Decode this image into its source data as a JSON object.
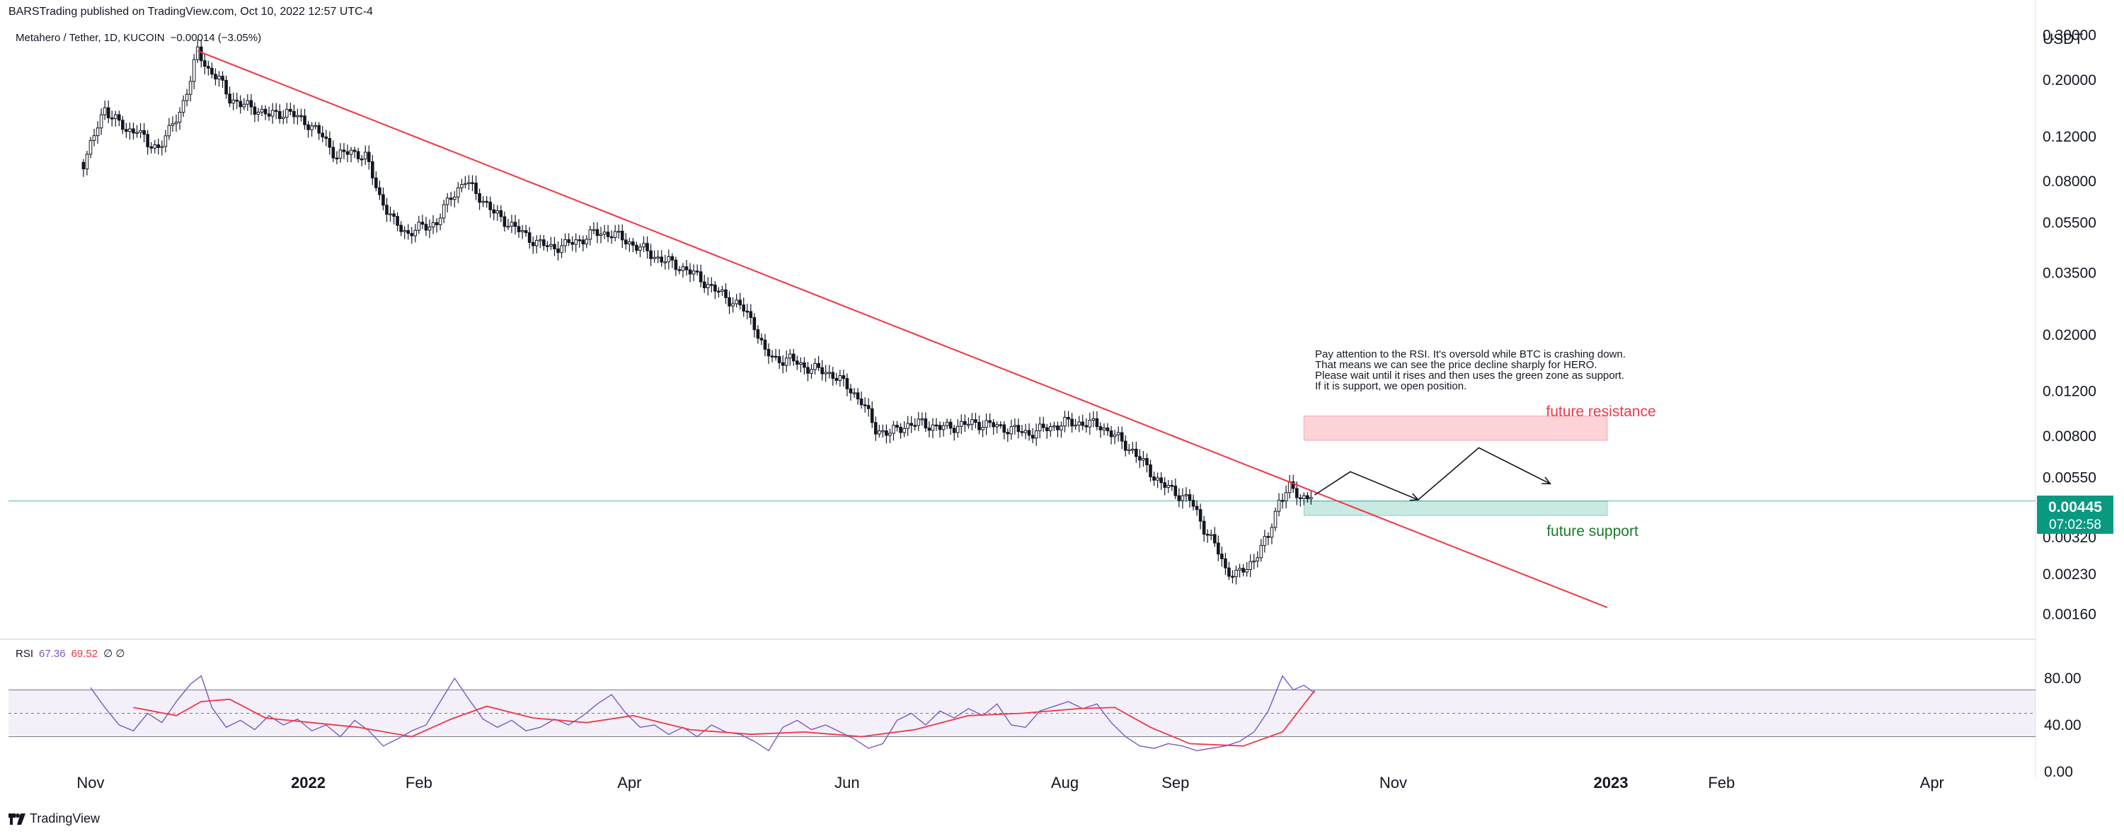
{
  "header": {
    "published": "BARSTrading published on TradingView.com, Oct 10, 2022 12:57 UTC-4",
    "symbol": "Metahero / Tether, 1D, KUCOIN",
    "change": "−0.00014 (−3.05%)"
  },
  "footer": {
    "brand": "TradingView"
  },
  "rsi_legend": {
    "label": "RSI",
    "value1": "67.36",
    "value2": "69.52",
    "extra": "∅ ∅"
  },
  "price_badge": {
    "price": "0.00445",
    "countdown": "07:02:58"
  },
  "colors": {
    "trendline": "#f23645",
    "resistance": "#f23645",
    "support": "#089981",
    "rsi": "#7e57c2",
    "rsi_ma": "#f23645",
    "badge": "#089981"
  },
  "annotations": {
    "note_lines": [
      "Pay attention to the RSI. It's oversold while BTC is crashing down.",
      "That means we can see the price decline sharply for HERO.",
      "Please wait until it rises and then uses the green zone as support.",
      "If it is support, we open position."
    ],
    "resistance_label": "future resistance",
    "support_label": "future support"
  },
  "chart_data": [
    {
      "type": "candlestick",
      "title": "Metahero / Tether, 1D, KUCOIN",
      "yunit": "USDT",
      "yscale": "log",
      "ylim": [
        0.0013,
        0.34
      ],
      "y_ticks": [
        "0.30000",
        "0.20000",
        "0.12000",
        "0.08000",
        "0.05500",
        "0.03500",
        "0.02000",
        "0.01200",
        "0.00800",
        "0.00550",
        "0.00320",
        "0.00230",
        "0.00160"
      ],
      "x_ticks": [
        "Nov",
        "2022",
        "Feb",
        "Apr",
        "Jun",
        "Aug",
        "Sep",
        "Nov",
        "2023",
        "Feb",
        "Apr"
      ],
      "x_range": [
        "2021-10-09",
        "2023-04-30"
      ],
      "close_series": [
        [
          "2021-10-30",
          0.095
        ],
        [
          "2021-11-02",
          0.12
        ],
        [
          "2021-11-05",
          0.155
        ],
        [
          "2021-11-08",
          0.14
        ],
        [
          "2021-11-11",
          0.125
        ],
        [
          "2021-11-14",
          0.13
        ],
        [
          "2021-11-17",
          0.11
        ],
        [
          "2021-11-20",
          0.11
        ],
        [
          "2021-11-23",
          0.125
        ],
        [
          "2021-11-26",
          0.15
        ],
        [
          "2021-11-29",
          0.2
        ],
        [
          "2021-12-01",
          0.26
        ],
        [
          "2021-12-04",
          0.22
        ],
        [
          "2021-12-07",
          0.2
        ],
        [
          "2021-12-10",
          0.17
        ],
        [
          "2021-12-13",
          0.16
        ],
        [
          "2021-12-17",
          0.155
        ],
        [
          "2021-12-21",
          0.145
        ],
        [
          "2021-12-26",
          0.15
        ],
        [
          "2022-01-01",
          0.135
        ],
        [
          "2022-01-05",
          0.12
        ],
        [
          "2022-01-09",
          0.1
        ],
        [
          "2022-01-13",
          0.105
        ],
        [
          "2022-01-17",
          0.1
        ],
        [
          "2022-01-21",
          0.07
        ],
        [
          "2022-01-25",
          0.055
        ],
        [
          "2022-01-29",
          0.05
        ],
        [
          "2022-02-02",
          0.053
        ],
        [
          "2022-02-06",
          0.055
        ],
        [
          "2022-02-10",
          0.07
        ],
        [
          "2022-02-14",
          0.08
        ],
        [
          "2022-02-18",
          0.07
        ],
        [
          "2022-02-22",
          0.06
        ],
        [
          "2022-02-26",
          0.055
        ],
        [
          "2022-03-02",
          0.05
        ],
        [
          "2022-03-06",
          0.046
        ],
        [
          "2022-03-10",
          0.044
        ],
        [
          "2022-03-14",
          0.045
        ],
        [
          "2022-03-18",
          0.047
        ],
        [
          "2022-03-22",
          0.05
        ],
        [
          "2022-03-27",
          0.05
        ],
        [
          "2022-04-01",
          0.046
        ],
        [
          "2022-04-05",
          0.043
        ],
        [
          "2022-04-09",
          0.04
        ],
        [
          "2022-04-13",
          0.038
        ],
        [
          "2022-04-17",
          0.036
        ],
        [
          "2022-04-21",
          0.033
        ],
        [
          "2022-04-25",
          0.03
        ],
        [
          "2022-04-28",
          0.028
        ],
        [
          "2022-05-02",
          0.026
        ],
        [
          "2022-05-06",
          0.022
        ],
        [
          "2022-05-09",
          0.017
        ],
        [
          "2022-05-12",
          0.016
        ],
        [
          "2022-05-16",
          0.016
        ],
        [
          "2022-05-20",
          0.015
        ],
        [
          "2022-05-24",
          0.0145
        ],
        [
          "2022-05-28",
          0.014
        ],
        [
          "2022-06-01",
          0.0125
        ],
        [
          "2022-06-05",
          0.011
        ],
        [
          "2022-06-09",
          0.0085
        ],
        [
          "2022-06-13",
          0.0082
        ],
        [
          "2022-06-17",
          0.0088
        ],
        [
          "2022-06-22",
          0.009
        ],
        [
          "2022-06-27",
          0.0086
        ],
        [
          "2022-07-02",
          0.0088
        ],
        [
          "2022-07-07",
          0.009
        ],
        [
          "2022-07-12",
          0.0088
        ],
        [
          "2022-07-17",
          0.0085
        ],
        [
          "2022-07-22",
          0.0082
        ],
        [
          "2022-07-27",
          0.0086
        ],
        [
          "2022-08-01",
          0.009
        ],
        [
          "2022-08-06",
          0.009
        ],
        [
          "2022-08-11",
          0.0088
        ],
        [
          "2022-08-16",
          0.0078
        ],
        [
          "2022-08-20",
          0.007
        ],
        [
          "2022-08-24",
          0.006
        ],
        [
          "2022-08-28",
          0.0052
        ],
        [
          "2022-09-01",
          0.0048
        ],
        [
          "2022-09-05",
          0.0045
        ],
        [
          "2022-09-09",
          0.0035
        ],
        [
          "2022-09-12",
          0.003
        ],
        [
          "2022-09-15",
          0.0024
        ],
        [
          "2022-09-18",
          0.0023
        ],
        [
          "2022-09-21",
          0.0024
        ],
        [
          "2022-09-24",
          0.0028
        ],
        [
          "2022-09-27",
          0.0032
        ],
        [
          "2022-09-30",
          0.0045
        ],
        [
          "2022-10-03",
          0.005
        ],
        [
          "2022-10-06",
          0.0046
        ],
        [
          "2022-10-09",
          0.0047
        ],
        [
          "2022-10-10",
          0.00445
        ]
      ],
      "trendline": [
        [
          "2021-12-01",
          0.26
        ],
        [
          "2022-12-31",
          0.0017
        ]
      ],
      "resistance_zone": {
        "from": "2022-10-07",
        "to": "2022-12-31",
        "low": 0.0077,
        "high": 0.0096
      },
      "support_zone": {
        "from": "2022-10-07",
        "to": "2022-12-31",
        "low": 0.0039,
        "high": 0.00445
      },
      "projection_path": [
        [
          "2022-10-10",
          0.0047
        ],
        [
          "2022-10-20",
          0.0058
        ],
        [
          "2022-11-08",
          0.0045
        ],
        [
          "2022-11-25",
          0.0072
        ],
        [
          "2022-12-15",
          0.0052
        ]
      ],
      "last_price": 0.00445
    },
    {
      "type": "line",
      "title": "RSI",
      "ylim": [
        0,
        100
      ],
      "y_ticks": [
        "80.00",
        "40.00",
        "0.00"
      ],
      "bands": [
        30,
        50,
        70
      ],
      "series": [
        {
          "name": "RSI",
          "points": [
            [
              "2021-11-01",
              72
            ],
            [
              "2021-11-05",
              55
            ],
            [
              "2021-11-09",
              40
            ],
            [
              "2021-11-13",
              35
            ],
            [
              "2021-11-17",
              50
            ],
            [
              "2021-11-21",
              42
            ],
            [
              "2021-11-25",
              60
            ],
            [
              "2021-11-29",
              75
            ],
            [
              "2021-12-02",
              82
            ],
            [
              "2021-12-05",
              55
            ],
            [
              "2021-12-09",
              38
            ],
            [
              "2021-12-13",
              44
            ],
            [
              "2021-12-17",
              36
            ],
            [
              "2021-12-21",
              48
            ],
            [
              "2021-12-25",
              40
            ],
            [
              "2021-12-29",
              45
            ],
            [
              "2022-01-02",
              35
            ],
            [
              "2022-01-06",
              40
            ],
            [
              "2022-01-10",
              30
            ],
            [
              "2022-01-14",
              44
            ],
            [
              "2022-01-18",
              35
            ],
            [
              "2022-01-22",
              22
            ],
            [
              "2022-01-26",
              28
            ],
            [
              "2022-01-30",
              35
            ],
            [
              "2022-02-03",
              40
            ],
            [
              "2022-02-07",
              60
            ],
            [
              "2022-02-11",
              80
            ],
            [
              "2022-02-15",
              62
            ],
            [
              "2022-02-19",
              45
            ],
            [
              "2022-02-23",
              38
            ],
            [
              "2022-02-27",
              44
            ],
            [
              "2022-03-03",
              35
            ],
            [
              "2022-03-07",
              38
            ],
            [
              "2022-03-11",
              45
            ],
            [
              "2022-03-15",
              40
            ],
            [
              "2022-03-19",
              48
            ],
            [
              "2022-03-23",
              58
            ],
            [
              "2022-03-27",
              66
            ],
            [
              "2022-03-31",
              50
            ],
            [
              "2022-04-04",
              38
            ],
            [
              "2022-04-08",
              40
            ],
            [
              "2022-04-12",
              32
            ],
            [
              "2022-04-16",
              38
            ],
            [
              "2022-04-20",
              30
            ],
            [
              "2022-04-24",
              40
            ],
            [
              "2022-04-28",
              34
            ],
            [
              "2022-05-02",
              32
            ],
            [
              "2022-05-06",
              26
            ],
            [
              "2022-05-10",
              18
            ],
            [
              "2022-05-14",
              38
            ],
            [
              "2022-05-18",
              44
            ],
            [
              "2022-05-22",
              36
            ],
            [
              "2022-05-26",
              40
            ],
            [
              "2022-05-30",
              34
            ],
            [
              "2022-06-03",
              28
            ],
            [
              "2022-06-07",
              20
            ],
            [
              "2022-06-11",
              24
            ],
            [
              "2022-06-15",
              44
            ],
            [
              "2022-06-19",
              50
            ],
            [
              "2022-06-23",
              40
            ],
            [
              "2022-06-27",
              52
            ],
            [
              "2022-07-01",
              46
            ],
            [
              "2022-07-05",
              54
            ],
            [
              "2022-07-09",
              48
            ],
            [
              "2022-07-13",
              58
            ],
            [
              "2022-07-17",
              40
            ],
            [
              "2022-07-21",
              38
            ],
            [
              "2022-07-25",
              52
            ],
            [
              "2022-07-29",
              56
            ],
            [
              "2022-08-02",
              60
            ],
            [
              "2022-08-06",
              54
            ],
            [
              "2022-08-10",
              58
            ],
            [
              "2022-08-14",
              42
            ],
            [
              "2022-08-18",
              30
            ],
            [
              "2022-08-22",
              22
            ],
            [
              "2022-08-26",
              20
            ],
            [
              "2022-08-30",
              24
            ],
            [
              "2022-09-03",
              22
            ],
            [
              "2022-09-07",
              18
            ],
            [
              "2022-09-11",
              20
            ],
            [
              "2022-09-15",
              22
            ],
            [
              "2022-09-19",
              26
            ],
            [
              "2022-09-23",
              34
            ],
            [
              "2022-09-27",
              52
            ],
            [
              "2022-10-01",
              82
            ],
            [
              "2022-10-04",
              70
            ],
            [
              "2022-10-07",
              74
            ],
            [
              "2022-10-10",
              67.36
            ]
          ]
        },
        {
          "name": "RSI MA",
          "points": [
            [
              "2021-11-13",
              55
            ],
            [
              "2021-11-25",
              48
            ],
            [
              "2021-12-02",
              60
            ],
            [
              "2021-12-10",
              62
            ],
            [
              "2021-12-20",
              46
            ],
            [
              "2022-01-02",
              42
            ],
            [
              "2022-01-15",
              38
            ],
            [
              "2022-01-30",
              30
            ],
            [
              "2022-02-10",
              45
            ],
            [
              "2022-02-20",
              56
            ],
            [
              "2022-03-05",
              46
            ],
            [
              "2022-03-20",
              42
            ],
            [
              "2022-04-02",
              48
            ],
            [
              "2022-04-18",
              36
            ],
            [
              "2022-05-05",
              32
            ],
            [
              "2022-05-20",
              34
            ],
            [
              "2022-06-05",
              30
            ],
            [
              "2022-06-20",
              36
            ],
            [
              "2022-07-05",
              48
            ],
            [
              "2022-07-20",
              50
            ],
            [
              "2022-08-05",
              54
            ],
            [
              "2022-08-15",
              55
            ],
            [
              "2022-08-25",
              38
            ],
            [
              "2022-09-05",
              24
            ],
            [
              "2022-09-20",
              22
            ],
            [
              "2022-10-01",
              34
            ],
            [
              "2022-10-10",
              69.52
            ]
          ]
        }
      ]
    }
  ]
}
